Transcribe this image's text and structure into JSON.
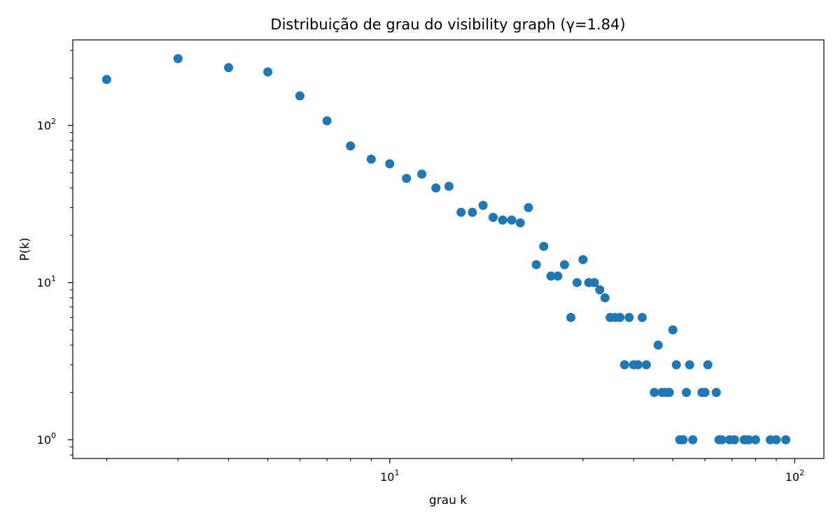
{
  "chart_data": {
    "type": "scatter",
    "title": "Distribuição de grau do visibility graph (γ=1.84)",
    "xlabel": "grau k",
    "ylabel": "P(k)",
    "x_scale": "log",
    "y_scale": "log",
    "xlim": [
      1.65,
      118
    ],
    "ylim": [
      0.76,
      350
    ],
    "grid": false,
    "marker_color": "#1f77b4",
    "x_major_ticks": [
      {
        "value": 10,
        "base": "10",
        "exp": "1"
      },
      {
        "value": 100,
        "base": "10",
        "exp": "2"
      }
    ],
    "y_major_ticks": [
      {
        "value": 1,
        "base": "10",
        "exp": "0"
      },
      {
        "value": 10,
        "base": "10",
        "exp": "1"
      },
      {
        "value": 100,
        "base": "10",
        "exp": "2"
      }
    ],
    "points": [
      {
        "x": 2,
        "y": 196
      },
      {
        "x": 3,
        "y": 266
      },
      {
        "x": 4,
        "y": 233
      },
      {
        "x": 5,
        "y": 219
      },
      {
        "x": 6,
        "y": 154
      },
      {
        "x": 7,
        "y": 107
      },
      {
        "x": 8,
        "y": 74
      },
      {
        "x": 9,
        "y": 61
      },
      {
        "x": 10,
        "y": 57
      },
      {
        "x": 11,
        "y": 46
      },
      {
        "x": 12,
        "y": 49
      },
      {
        "x": 13,
        "y": 40
      },
      {
        "x": 14,
        "y": 41
      },
      {
        "x": 15,
        "y": 28
      },
      {
        "x": 16,
        "y": 28
      },
      {
        "x": 17,
        "y": 31
      },
      {
        "x": 18,
        "y": 26
      },
      {
        "x": 19,
        "y": 25
      },
      {
        "x": 20,
        "y": 25
      },
      {
        "x": 21,
        "y": 24
      },
      {
        "x": 22,
        "y": 30
      },
      {
        "x": 23,
        "y": 13
      },
      {
        "x": 24,
        "y": 17
      },
      {
        "x": 25,
        "y": 11
      },
      {
        "x": 26,
        "y": 11
      },
      {
        "x": 27,
        "y": 13
      },
      {
        "x": 28,
        "y": 6
      },
      {
        "x": 29,
        "y": 10
      },
      {
        "x": 30,
        "y": 14
      },
      {
        "x": 31,
        "y": 10
      },
      {
        "x": 32,
        "y": 10
      },
      {
        "x": 33,
        "y": 9
      },
      {
        "x": 34,
        "y": 8
      },
      {
        "x": 35,
        "y": 6
      },
      {
        "x": 36,
        "y": 6
      },
      {
        "x": 37,
        "y": 6
      },
      {
        "x": 38,
        "y": 3
      },
      {
        "x": 39,
        "y": 6
      },
      {
        "x": 40,
        "y": 3
      },
      {
        "x": 41,
        "y": 3
      },
      {
        "x": 42,
        "y": 6
      },
      {
        "x": 43,
        "y": 3
      },
      {
        "x": 45,
        "y": 2
      },
      {
        "x": 46,
        "y": 4
      },
      {
        "x": 47,
        "y": 2
      },
      {
        "x": 48,
        "y": 2
      },
      {
        "x": 49,
        "y": 2
      },
      {
        "x": 50,
        "y": 5
      },
      {
        "x": 51,
        "y": 3
      },
      {
        "x": 52,
        "y": 1
      },
      {
        "x": 53,
        "y": 1
      },
      {
        "x": 54,
        "y": 2
      },
      {
        "x": 55,
        "y": 3
      },
      {
        "x": 56,
        "y": 1
      },
      {
        "x": 59,
        "y": 2
      },
      {
        "x": 60,
        "y": 2
      },
      {
        "x": 61,
        "y": 3
      },
      {
        "x": 64,
        "y": 2
      },
      {
        "x": 65,
        "y": 1
      },
      {
        "x": 66,
        "y": 1
      },
      {
        "x": 69,
        "y": 1
      },
      {
        "x": 71,
        "y": 1
      },
      {
        "x": 75,
        "y": 1
      },
      {
        "x": 76,
        "y": 1
      },
      {
        "x": 77,
        "y": 1
      },
      {
        "x": 80,
        "y": 1
      },
      {
        "x": 87,
        "y": 1
      },
      {
        "x": 90,
        "y": 1
      },
      {
        "x": 95,
        "y": 1
      }
    ]
  }
}
